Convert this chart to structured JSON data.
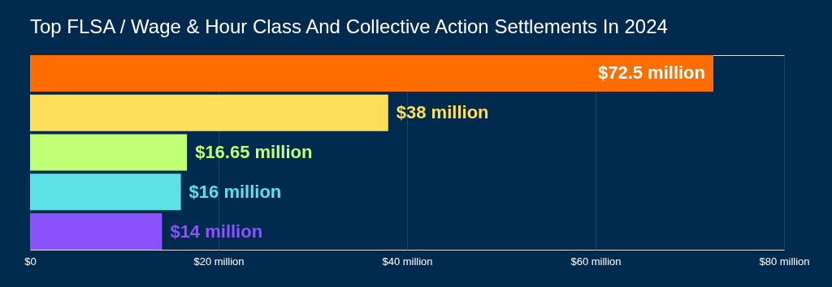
{
  "chart_data": {
    "type": "bar",
    "orientation": "horizontal",
    "title": "Top FLSA / Wage & Hour Class And Collective Action Settlements In 2024",
    "categories": [
      null,
      null,
      null,
      null,
      null
    ],
    "values": [
      72.5,
      38,
      16.65,
      16,
      14
    ],
    "colors": [
      "#ff6d00",
      "#ffde59",
      "#c1ff72",
      "#5ce1e6",
      "#8c52ff"
    ],
    "value_labels": [
      "$72.5 million",
      "$38 million",
      "$16.65 million",
      "$16 million",
      "$14 million"
    ],
    "xlim": [
      0,
      80
    ],
    "xticks": [
      {
        "value": 0,
        "label": "$0"
      },
      {
        "value": 20,
        "label": "$20 million"
      },
      {
        "value": 40,
        "label": "$40 million"
      },
      {
        "value": 60,
        "label": "$60 million"
      },
      {
        "value": 80,
        "label": "$80 million"
      }
    ],
    "grid": "x",
    "legend": false
  }
}
